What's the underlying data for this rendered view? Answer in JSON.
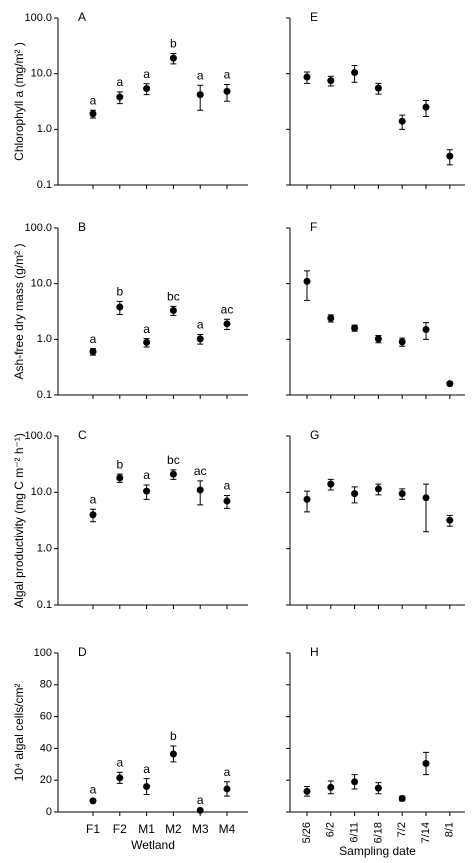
{
  "chart_data": [
    {
      "type": "scatter",
      "panel": "A",
      "ylabel": "Chlorophyll a (mg/m² )",
      "log": true,
      "tick_labels": true,
      "color": "#000000",
      "values": [
        1.9,
        3.8,
        5.4,
        19,
        4.2,
        4.8
      ],
      "errors": [
        0.3,
        0.9,
        1.2,
        4,
        2,
        1.6
      ],
      "annotations": [
        "a",
        "a",
        "a",
        "b",
        "a",
        "a"
      ],
      "ylim": [
        0.1,
        100
      ],
      "yticks": [
        {
          "value": 100,
          "label": "100.0"
        },
        {
          "value": 10,
          "label": "10.0"
        },
        {
          "value": 1,
          "label": "1.0"
        },
        0.1
      ]
    },
    {
      "type": "scatter",
      "panel": "E",
      "log": true,
      "tick_labels": false,
      "color": "#000000",
      "values": [
        8.7,
        7.5,
        10.5,
        5.5,
        1.4,
        2.5,
        0.33
      ],
      "errors": [
        2,
        1.5,
        3.5,
        1.2,
        0.4,
        0.8,
        0.1
      ],
      "ylim": [
        0.1,
        100
      ],
      "yticks": [
        100,
        10,
        1,
        0.1
      ]
    },
    {
      "type": "scatter",
      "panel": "B",
      "ylabel": "Ash-free dry mass (g/m² )",
      "log": true,
      "tick_labels": true,
      "color": "#000000",
      "values": [
        0.6,
        3.8,
        0.88,
        3.3,
        1.02,
        1.9
      ],
      "errors": [
        0.08,
        1,
        0.15,
        0.6,
        0.2,
        0.4
      ],
      "annotations": [
        "a",
        "b",
        "a",
        "bc",
        "a",
        "ac"
      ],
      "ylim": [
        0.1,
        100
      ],
      "yticks": [
        {
          "value": 100,
          "label": "100.0"
        },
        {
          "value": 10,
          "label": "10.0"
        },
        {
          "value": 1,
          "label": "1.0"
        },
        0.1
      ]
    },
    {
      "type": "scatter",
      "panel": "F",
      "log": true,
      "tick_labels": false,
      "color": "#000000",
      "values": [
        11,
        2.4,
        1.6,
        1.02,
        0.9,
        1.5,
        0.16
      ],
      "errors": [
        6,
        0.35,
        0.2,
        0.15,
        0.15,
        0.5,
        0.01
      ],
      "ylim": [
        0.1,
        100
      ],
      "yticks": [
        100,
        10,
        1,
        0.1
      ]
    },
    {
      "type": "scatter",
      "panel": "C",
      "ylabel": "Algal productivity (mg C m⁻² h⁻¹)",
      "log": true,
      "tick_labels": true,
      "color": "#000000",
      "values": [
        4,
        18,
        10.5,
        21,
        11,
        7
      ],
      "errors": [
        1,
        3,
        3,
        4,
        5,
        1.8
      ],
      "annotations": [
        "a",
        "b",
        "a",
        "bc",
        "ac",
        "a"
      ],
      "ylim": [
        0.1,
        100
      ],
      "yticks": [
        {
          "value": 100,
          "label": "100.0"
        },
        {
          "value": 10,
          "label": "10.0"
        },
        {
          "value": 1,
          "label": "1.0"
        },
        0.1
      ]
    },
    {
      "type": "scatter",
      "panel": "G",
      "log": true,
      "tick_labels": false,
      "color": "#000000",
      "values": [
        7.5,
        14,
        9.5,
        11.5,
        9.5,
        8,
        3.2
      ],
      "errors": [
        3,
        3,
        3,
        2.5,
        2,
        6,
        0.7
      ],
      "ylim": [
        0.1,
        100
      ],
      "yticks": [
        100,
        10,
        1,
        0.1
      ]
    },
    {
      "type": "scatter",
      "panel": "D",
      "ylabel": "10⁴ algal cells/cm²",
      "xlabel": "Wetland",
      "log": false,
      "tick_labels": true,
      "color": "#000000",
      "categories": [
        "F1",
        "F2",
        "M1",
        "M2",
        "M3",
        "M4"
      ],
      "values": [
        7,
        21.5,
        16,
        36.5,
        1,
        14.5
      ],
      "errors": [
        1,
        3.5,
        5,
        5,
        0.5,
        4.5
      ],
      "annotations": [
        "a",
        "a",
        "a",
        "b",
        "a",
        "a"
      ],
      "ylim": [
        0,
        100
      ],
      "yticks": [
        0,
        20,
        40,
        60,
        80,
        100
      ]
    },
    {
      "type": "scatter",
      "panel": "H",
      "xlabel": "Sampling date",
      "log": false,
      "tick_labels": false,
      "color": "#000000",
      "categories": [
        "5/26",
        "6/2",
        "6/11",
        "6/18",
        "7/2",
        "7/14",
        "8/1"
      ],
      "values": [
        13,
        15.5,
        19,
        15,
        8.5,
        30.5,
        null
      ],
      "errors": [
        3,
        4,
        4.5,
        3.5,
        1.5,
        7,
        null
      ],
      "ylim": [
        0,
        100
      ],
      "yticks": [
        0,
        20,
        40,
        60,
        80,
        100
      ]
    }
  ]
}
